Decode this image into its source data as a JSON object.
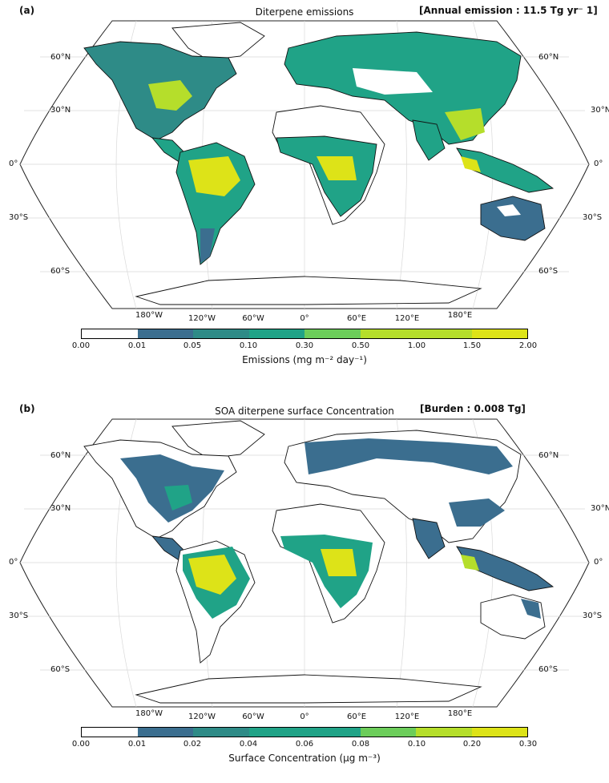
{
  "colors": {
    "levels": [
      "#ffffff",
      "#3b6e8f",
      "#2e8b87",
      "#20a387",
      "#6ccd5a",
      "#b5de2b",
      "#dde318"
    ],
    "land_low": "#3b6e8f",
    "land_mid": "#20a387",
    "land_high": "#b5de2b",
    "land_max": "#dde318",
    "land_none": "#ffffff"
  },
  "panel_a": {
    "letter": "(a)",
    "title": "Diterpene emissions",
    "stat": "[Annual emission : 11.5 Tg yr⁻ 1]",
    "colorbar_ticks": [
      "0.00",
      "0.01",
      "0.05",
      "0.10",
      "0.30",
      "0.50",
      "1.00",
      "1.50",
      "2.00"
    ],
    "colorbar_label": "Emissions (mg m⁻² day⁻¹)"
  },
  "panel_b": {
    "letter": "(b)",
    "title": "SOA diterpene surface Concentration",
    "stat": "[Burden : 0.008 Tg]",
    "colorbar_ticks": [
      "0.00",
      "0.01",
      "0.02",
      "0.04",
      "0.06",
      "0.08",
      "0.10",
      "0.20",
      "0.30"
    ],
    "colorbar_label": "Surface Concentration (μg m⁻³)"
  },
  "axes": {
    "lat_left": [
      "60°N",
      "30°N",
      "0°",
      "30°S",
      "60°S"
    ],
    "lat_right": [
      "60°N",
      "30°N",
      "0°",
      "30°S",
      "60°S"
    ],
    "lon": [
      "180°W",
      "120°W",
      "60°W",
      "0°",
      "60°E",
      "120°E",
      "180°E"
    ]
  }
}
